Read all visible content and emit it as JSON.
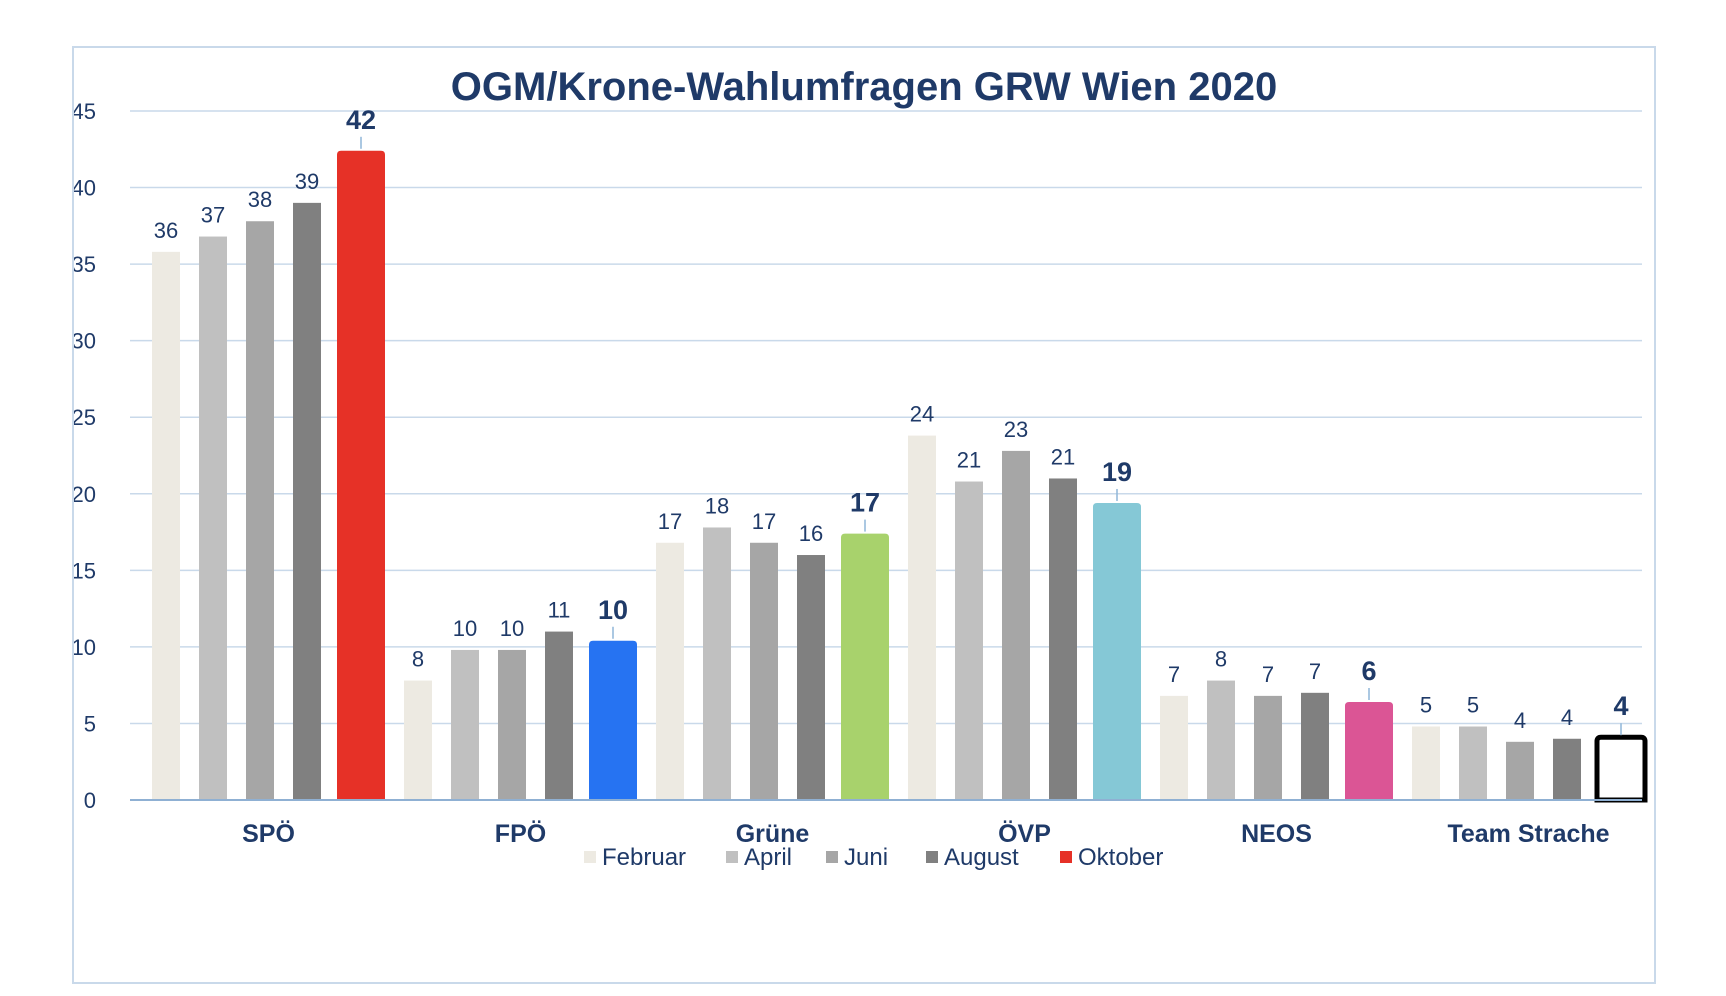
{
  "chart_data": {
    "type": "bar",
    "title": "OGM/Krone-Wahlumfragen GRW Wien 2020",
    "xlabel": "",
    "ylabel": "",
    "ylim": [
      0,
      45
    ],
    "yticks": [
      0,
      5,
      10,
      15,
      20,
      25,
      30,
      35,
      40,
      45
    ],
    "grid": true,
    "legend_position": "bottom",
    "categories": [
      "SPÖ",
      "FPÖ",
      "Grüne",
      "ÖVP",
      "NEOS",
      "Team Strache"
    ],
    "series": [
      {
        "name": "Februar",
        "color": "#edeae2",
        "values": [
          35.8,
          7.8,
          16.8,
          23.8,
          6.8,
          4.8
        ],
        "labels": [
          "36",
          "8",
          "17",
          "24",
          "7",
          "5"
        ]
      },
      {
        "name": "April",
        "color": "#c0c0c0",
        "values": [
          36.8,
          9.8,
          17.8,
          20.8,
          7.8,
          4.8
        ],
        "labels": [
          "37",
          "10",
          "18",
          "21",
          "8",
          "5"
        ]
      },
      {
        "name": "Juni",
        "color": "#a6a6a6",
        "values": [
          37.8,
          9.8,
          16.8,
          22.8,
          6.8,
          3.8
        ],
        "labels": [
          "38",
          "10",
          "17",
          "23",
          "7",
          "4"
        ]
      },
      {
        "name": "August",
        "color": "#808080",
        "values": [
          39,
          11,
          16,
          21,
          7,
          4
        ],
        "labels": [
          "39",
          "11",
          "16",
          "21",
          "7",
          "4"
        ]
      },
      {
        "name": "Oktober",
        "color": "#e63127",
        "values": [
          42.4,
          10.4,
          17.4,
          19.4,
          6.4,
          4.1
        ],
        "labels": [
          "42",
          "10",
          "17",
          "19",
          "6",
          "4"
        ]
      }
    ],
    "last_series_colors": [
      "#e63127",
      "#2673f2",
      "#a8d26c",
      "#85c8d6",
      "#db5595",
      "#ffffff"
    ]
  }
}
